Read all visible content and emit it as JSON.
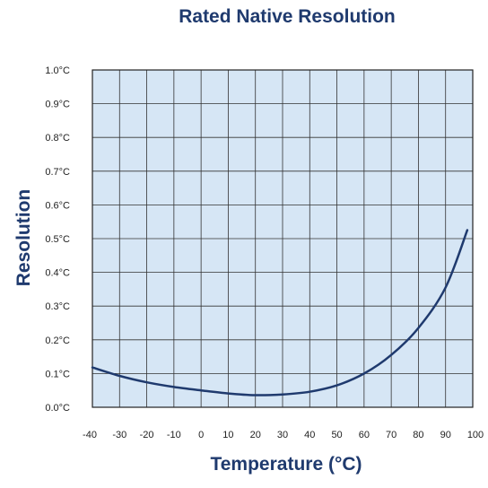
{
  "chart_data": {
    "type": "line",
    "title": "Rated Native Resolution",
    "xlabel": "Temperature (°C)",
    "ylabel": "Resolution",
    "xlim": [
      -40,
      100
    ],
    "ylim": [
      0,
      1.0
    ],
    "x_ticks": [
      "-40",
      "-30",
      "-20",
      "-10",
      "0",
      "10",
      "20",
      "30",
      "40",
      "50",
      "60",
      "70",
      "80",
      "90",
      "100"
    ],
    "y_ticks": [
      "1.0°C",
      "0.9°C",
      "0.8°C",
      "0.7°C",
      "0.6°C",
      "0.5°C",
      "0.4°C",
      "0.3°C",
      "0.2°C",
      "0.1°C",
      "0.0°C"
    ],
    "grid": true,
    "series": [
      {
        "x": [
          -40,
          -30,
          -20,
          -10,
          0,
          10,
          20,
          30,
          40,
          50,
          60,
          70,
          80,
          90,
          98
        ],
        "y": [
          0.118,
          0.093,
          0.074,
          0.06,
          0.05,
          0.041,
          0.036,
          0.038,
          0.046,
          0.065,
          0.1,
          0.155,
          0.235,
          0.355,
          0.525
        ]
      }
    ],
    "colors": {
      "plot_background": "#d6e6f5",
      "grid": "#333333",
      "line": "#1f3a6e",
      "text": "#1f3a6e"
    }
  }
}
